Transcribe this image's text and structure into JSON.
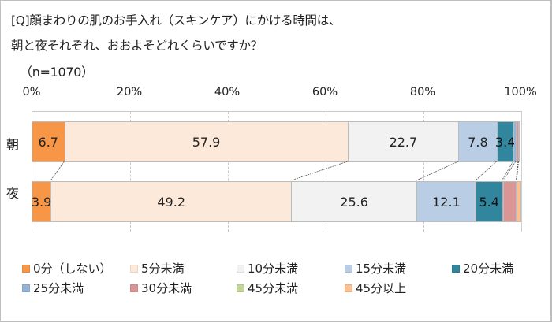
{
  "title": {
    "line1": "[Q]顔まわりの肌のお手入れ（スキンケア）にかける時間は、",
    "line2": "朝と夜それぞれ、おおよそどれくらいですか？",
    "sample": "（n=1070）"
  },
  "chart_data": {
    "type": "bar",
    "orientation": "horizontal-stacked-100",
    "title": "[Q]顔まわりの肌のお手入れ（スキンケア）にかける時間は、朝と夜それぞれ、おおよそどれくらいですか？（n=1070）",
    "xlabel": "",
    "ylabel": "",
    "xlim": [
      0,
      100
    ],
    "x_ticks": [
      "0%",
      "20%",
      "40%",
      "60%",
      "80%",
      "100%"
    ],
    "grid": true,
    "legend_position": "bottom",
    "categories": [
      "朝",
      "夜"
    ],
    "series": [
      {
        "name": "0分（しない）",
        "color": "#f79646",
        "values": [
          6.7,
          3.9
        ],
        "show_label": [
          true,
          true
        ]
      },
      {
        "name": "5分未満",
        "color": "#fde9d9",
        "values": [
          57.9,
          49.2
        ],
        "show_label": [
          true,
          true
        ]
      },
      {
        "name": "10分未満",
        "color": "#f2f2f2",
        "values": [
          22.7,
          25.6
        ],
        "show_label": [
          true,
          true
        ]
      },
      {
        "name": "15分未満",
        "color": "#b9cde5",
        "values": [
          7.8,
          12.1
        ],
        "show_label": [
          true,
          true
        ]
      },
      {
        "name": "20分未満",
        "color": "#31859c",
        "values": [
          3.4,
          5.4
        ],
        "show_label": [
          true,
          true
        ]
      },
      {
        "name": "25分未満",
        "color": "#95b3d7",
        "values": [
          0.5,
          0.3
        ],
        "show_label": [
          false,
          false
        ]
      },
      {
        "name": "30分未満",
        "color": "#da9694",
        "values": [
          0.5,
          2.6
        ],
        "show_label": [
          false,
          false
        ]
      },
      {
        "name": "45分未満",
        "color": "#c4d79b",
        "values": [
          0.1,
          0.1
        ],
        "show_label": [
          false,
          false
        ]
      },
      {
        "name": "45分以上",
        "color": "#fac090",
        "values": [
          0.3,
          0.8
        ],
        "show_label": [
          false,
          false
        ]
      }
    ]
  },
  "legend": [
    {
      "label": "0分（しない）",
      "color": "#f79646"
    },
    {
      "label": "5分未満",
      "color": "#fde9d9"
    },
    {
      "label": "10分未満",
      "color": "#f2f2f2"
    },
    {
      "label": "15分未満",
      "color": "#b9cde5"
    },
    {
      "label": "20分未満",
      "color": "#31859c"
    },
    {
      "label": "25分未満",
      "color": "#95b3d7"
    },
    {
      "label": "30分未満",
      "color": "#da9694"
    },
    {
      "label": "45分未満",
      "color": "#c4d79b"
    },
    {
      "label": "45分以上",
      "color": "#fac090"
    }
  ]
}
